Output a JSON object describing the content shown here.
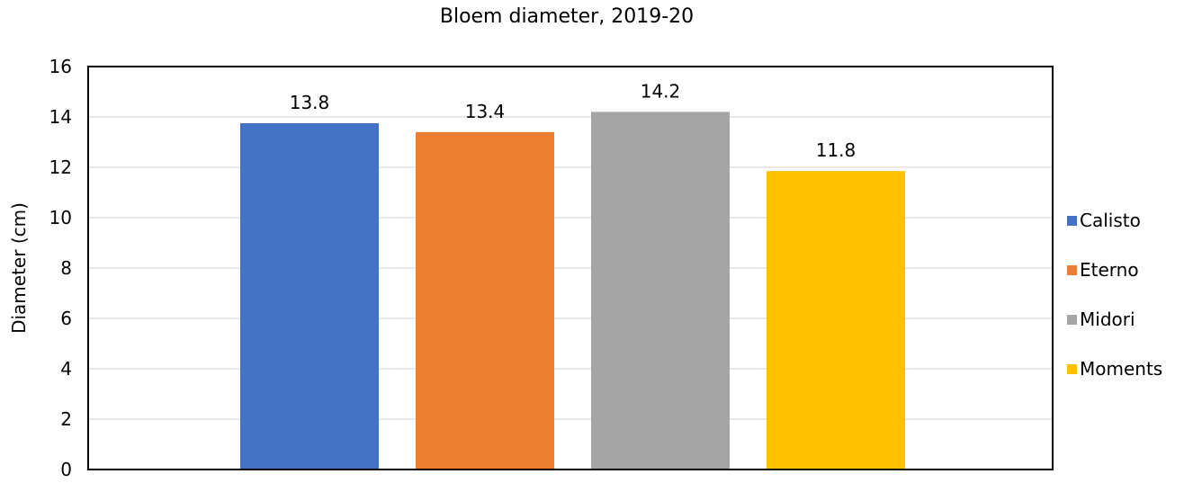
{
  "chart_data": {
    "type": "bar",
    "title": "Bloem diameter, 2019-20",
    "xlabel": "",
    "ylabel": "Diameter (cm)",
    "ylim": [
      0,
      16
    ],
    "yticks": [
      0,
      2,
      4,
      6,
      8,
      10,
      12,
      14,
      16
    ],
    "grid": true,
    "legend_position": "right",
    "series": [
      {
        "name": "Calisto",
        "value": 13.75,
        "label": "13.8",
        "color": "#4472C4"
      },
      {
        "name": "Eterno",
        "value": 13.4,
        "label": "13.4",
        "color": "#ED7D31"
      },
      {
        "name": "Midori",
        "value": 14.2,
        "label": "14.2",
        "color": "#A5A5A5"
      },
      {
        "name": "Moments",
        "value": 11.85,
        "label": "11.8",
        "color": "#FFC000"
      }
    ]
  }
}
